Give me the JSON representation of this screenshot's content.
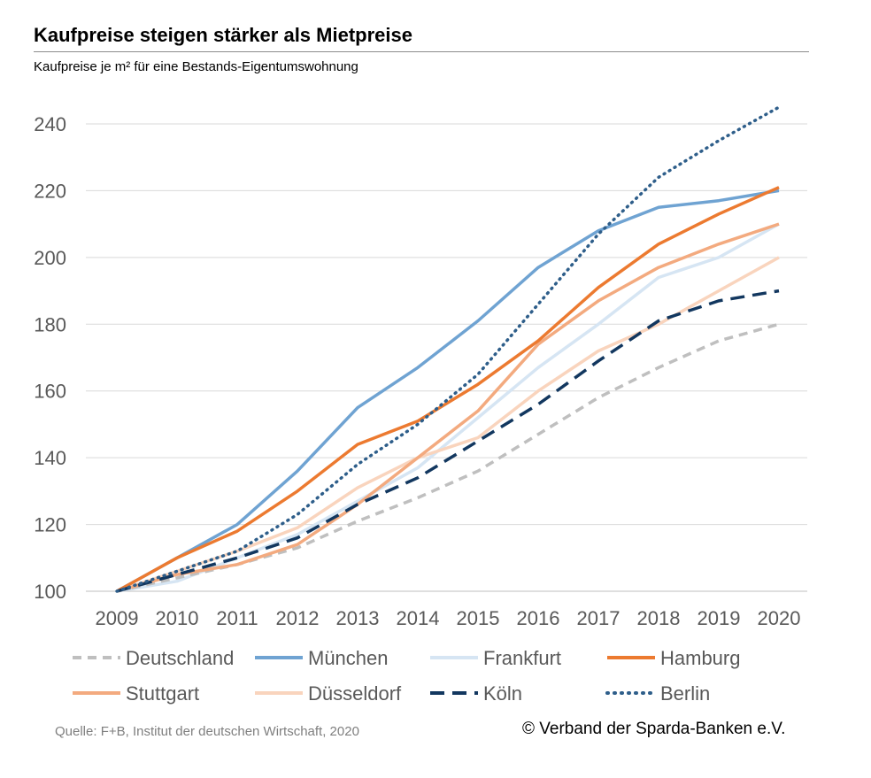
{
  "title": "Kaufpreise steigen stärker als Mietpreise",
  "subtitle": "Kaufpreise je m² für eine Bestands-Eigentumswohnung",
  "source": "Quelle: F+B, Institut der deutschen Wirtschaft, 2020",
  "copyright": "© Verband der Sparda-Banken e.V.",
  "chart_data": {
    "type": "line",
    "title": "Kaufpreise steigen stärker als Mietpreise",
    "subtitle": "Kaufpreise je m² für eine Bestands-Eigentumswohnung",
    "xlabel": "",
    "ylabel": "",
    "x": [
      "2009",
      "2010",
      "2011",
      "2012",
      "2013",
      "2014",
      "2015",
      "2016",
      "2017",
      "2018",
      "2019",
      "2020"
    ],
    "ylim": [
      100,
      240
    ],
    "yticks": [
      100,
      120,
      140,
      160,
      180,
      200,
      220,
      240
    ],
    "grid": true,
    "legend_position": "bottom",
    "series": [
      {
        "name": "Deutschland",
        "color": "#bfbfbf",
        "style": "dashed",
        "values": [
          100,
          104,
          108,
          113,
          121,
          128,
          136,
          147,
          158,
          167,
          175,
          180
        ]
      },
      {
        "name": "München",
        "color": "#6fa3d2",
        "style": "solid",
        "values": [
          100,
          110,
          120,
          136,
          155,
          167,
          181,
          197,
          208,
          215,
          217,
          220
        ]
      },
      {
        "name": "Frankfurt",
        "color": "#d6e5f3",
        "style": "solid",
        "values": [
          100,
          103,
          110,
          117,
          127,
          137,
          152,
          167,
          180,
          194,
          200,
          210
        ]
      },
      {
        "name": "Hamburg",
        "color": "#ec7a30",
        "style": "solid",
        "values": [
          100,
          110,
          118,
          130,
          144,
          151,
          162,
          175,
          191,
          204,
          213,
          221
        ]
      },
      {
        "name": "Stuttgart",
        "color": "#f3aa7f",
        "style": "solid",
        "values": [
          100,
          105,
          108,
          114,
          126,
          140,
          154,
          174,
          187,
          197,
          204,
          210
        ]
      },
      {
        "name": "Düsseldorf",
        "color": "#f9d4bd",
        "style": "solid",
        "values": [
          100,
          106,
          112,
          119,
          131,
          140,
          146,
          160,
          172,
          180,
          190,
          200
        ]
      },
      {
        "name": "Köln",
        "color": "#12375f",
        "style": "longdash",
        "values": [
          100,
          105,
          110,
          116,
          126,
          134,
          145,
          156,
          169,
          181,
          187,
          190
        ]
      },
      {
        "name": "Berlin",
        "color": "#2e5e8a",
        "style": "dotted",
        "values": [
          100,
          106,
          112,
          123,
          138,
          150,
          165,
          186,
          207,
          224,
          235,
          245
        ]
      }
    ]
  }
}
